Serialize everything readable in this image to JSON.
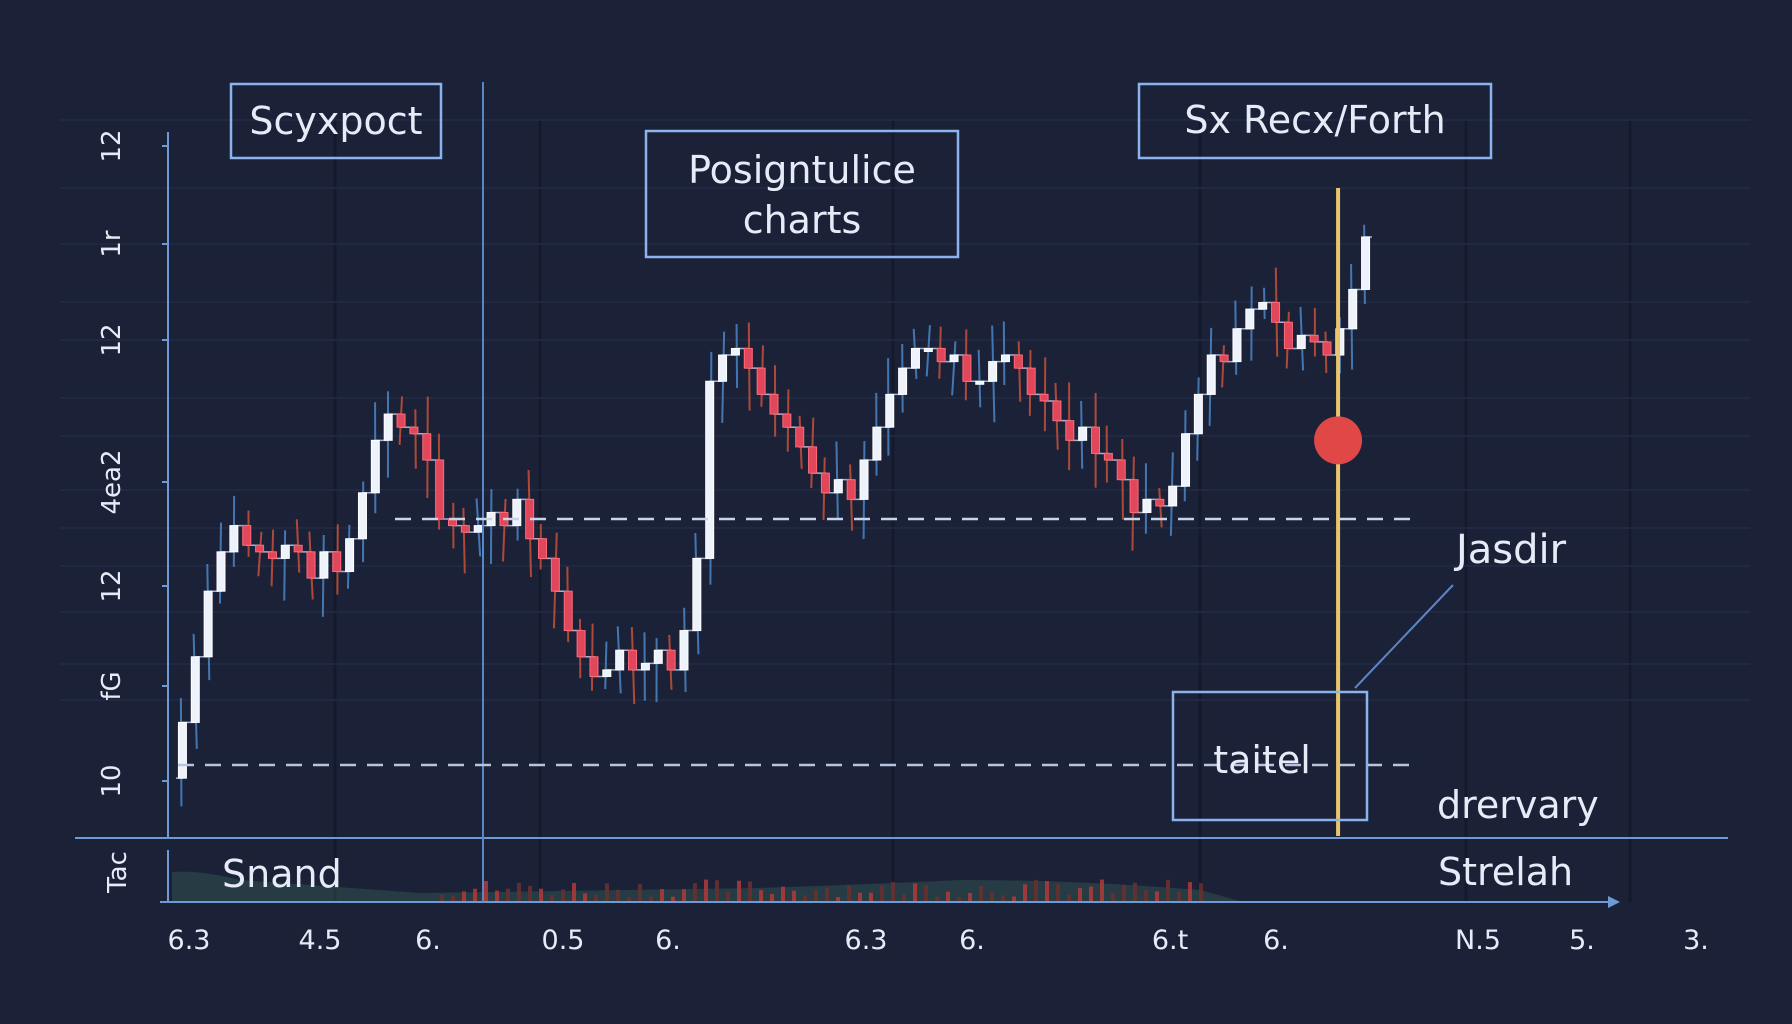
{
  "colors": {
    "background": "#1b2238",
    "axis": "#6f9ad6",
    "label_box": "#8cb4ec",
    "text": "#e6ecf7",
    "candle_up": "#eef2fb",
    "candle_down": "#e0475a",
    "wick_up": "#4a86c8",
    "wick_down": "#c8503a",
    "marker_line": "#e9c46a",
    "marker_dot": "#e04848",
    "dashed": "#c8d4ea",
    "volume": "#3d6a5a"
  },
  "labels": {
    "top_left_box": "Scyxpoct",
    "center_box_line1": "Posigntulice",
    "center_box_line2": "charts",
    "top_right_box": "Sx Recx/Forth",
    "callout": "Jasdir",
    "small_box": "taitel",
    "lower_dashed_label": "drervary",
    "volume_left": "Snand",
    "volume_right": "Strelah",
    "volume_axis_label": "Tac"
  },
  "chart_data": {
    "type": "candlestick",
    "y_tick_labels": [
      "10",
      "fG",
      "12",
      "4ea2",
      "12",
      "1r",
      "12"
    ],
    "x_tick_labels": [
      "6.3",
      "4.5",
      "6.",
      "0.5",
      "6.",
      "6.3",
      "6.",
      "6.t",
      "6.",
      "N.5",
      "5.",
      "3."
    ],
    "reference_lines": [
      {
        "label": "Jasdir",
        "style": "dashed",
        "level": 0.41
      },
      {
        "label": "drervary",
        "style": "dashed",
        "level": 0.035
      }
    ],
    "marker": {
      "position": 0.72,
      "dot_level": 0.53
    },
    "series_close": [
      0.015,
      0.1,
      0.2,
      0.3,
      0.36,
      0.4,
      0.37,
      0.36,
      0.35,
      0.37,
      0.36,
      0.32,
      0.36,
      0.33,
      0.38,
      0.45,
      0.53,
      0.57,
      0.55,
      0.54,
      0.5,
      0.41,
      0.4,
      0.39,
      0.4,
      0.42,
      0.4,
      0.44,
      0.38,
      0.35,
      0.3,
      0.24,
      0.2,
      0.17,
      0.18,
      0.21,
      0.18,
      0.19,
      0.21,
      0.18,
      0.24,
      0.35,
      0.62,
      0.66,
      0.67,
      0.64,
      0.6,
      0.57,
      0.55,
      0.52,
      0.48,
      0.45,
      0.47,
      0.44,
      0.5,
      0.55,
      0.6,
      0.64,
      0.67,
      0.67,
      0.65,
      0.66,
      0.62,
      0.62,
      0.65,
      0.66,
      0.64,
      0.6,
      0.59,
      0.56,
      0.53,
      0.55,
      0.51,
      0.5,
      0.47,
      0.42,
      0.44,
      0.43,
      0.46,
      0.54,
      0.6,
      0.66,
      0.65,
      0.7,
      0.73,
      0.74,
      0.71,
      0.67,
      0.69,
      0.68,
      0.66,
      0.7,
      0.76,
      0.84
    ]
  }
}
